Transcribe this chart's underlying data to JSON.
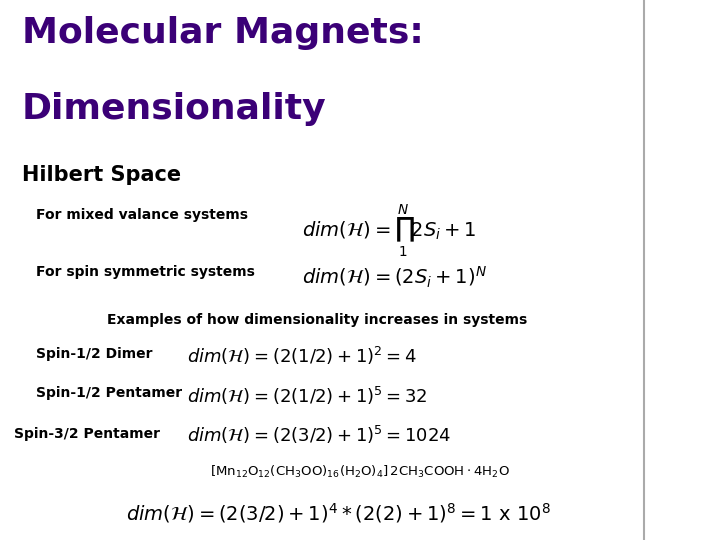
{
  "title_line1": "Molecular Magnets:",
  "title_line2": "Dimensionality",
  "title_color": "#3b0077",
  "subtitle": "Hilbert Space",
  "subtitle_color": "#000000",
  "bg_color": "#ffffff",
  "vertical_line_x": 0.895,
  "label_mixed": "For mixed valance systems",
  "label_spin_sym": "For spin symmetric systems",
  "examples_header": "Examples of how dimensionality increases in systems",
  "ex1_label": "Spin-1/2 Dimer",
  "ex2_label": "Spin-1/2 Pentamer",
  "ex3_label": "Spin-3/2 Pentamer"
}
